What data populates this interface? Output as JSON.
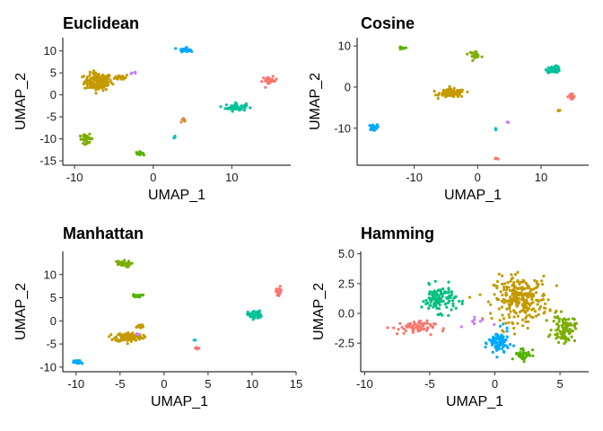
{
  "chart_data": [
    {
      "type": "scatter",
      "title": "Euclidean",
      "xlabel": "UMAP_1",
      "ylabel": "UMAP_2",
      "xlim": [
        -11.5,
        17.5
      ],
      "ylim": [
        -16,
        13
      ],
      "xticks": [
        -10,
        0,
        10
      ],
      "yticks": [
        -15,
        -10,
        -5,
        0,
        5,
        10
      ],
      "grid": false,
      "clusters": [
        {
          "color": "#C49A00",
          "cx": -7,
          "cy": 3,
          "sx": 1.6,
          "sy": 1.8,
          "n": 150
        },
        {
          "color": "#C49A00",
          "cx": -4,
          "cy": 4,
          "sx": 0.8,
          "sy": 0.6,
          "n": 18
        },
        {
          "color": "#00A9FF",
          "cx": 4,
          "cy": 10.3,
          "sx": 0.6,
          "sy": 0.4,
          "n": 30
        },
        {
          "color": "#00C19A",
          "cx": 10.5,
          "cy": -2.8,
          "sx": 1.2,
          "sy": 0.8,
          "n": 55
        },
        {
          "color": "#F8766D",
          "cx": 14.8,
          "cy": 3.2,
          "sx": 0.9,
          "sy": 0.8,
          "n": 22
        },
        {
          "color": "#7CAE00",
          "cx": -8.5,
          "cy": -10,
          "sx": 0.8,
          "sy": 0.9,
          "n": 30
        },
        {
          "color": "#53B400",
          "cx": -1.8,
          "cy": -13.3,
          "sx": 0.5,
          "sy": 0.3,
          "n": 14
        },
        {
          "color": "#F8766D",
          "cx": 3.8,
          "cy": -5.8,
          "sx": 0.3,
          "sy": 0.4,
          "n": 6
        },
        {
          "color": "#C49A00",
          "cx": 4,
          "cy": -6,
          "sx": 0.3,
          "sy": 0.3,
          "n": 4
        },
        {
          "color": "#00BFC4",
          "cx": 2.8,
          "cy": -9.5,
          "sx": 0.15,
          "sy": 0.3,
          "n": 3
        },
        {
          "color": "#C77CFF",
          "cx": -2.5,
          "cy": 5,
          "sx": 0.4,
          "sy": 0.3,
          "n": 4
        }
      ]
    },
    {
      "type": "scatter",
      "title": "Cosine",
      "xlabel": "UMAP_1",
      "ylabel": "UMAP_2",
      "xlim": [
        -19,
        17.5
      ],
      "ylim": [
        -19,
        12
      ],
      "xticks": [
        -10,
        0,
        10
      ],
      "yticks": [
        -10,
        0,
        10
      ],
      "grid": false,
      "clusters": [
        {
          "color": "#C49A00",
          "cx": -4,
          "cy": -1.5,
          "sx": 1.8,
          "sy": 0.9,
          "n": 130
        },
        {
          "color": "#00C19A",
          "cx": 12,
          "cy": 4.3,
          "sx": 1.0,
          "sy": 0.7,
          "n": 45
        },
        {
          "color": "#7CAE00",
          "cx": -0.5,
          "cy": 8,
          "sx": 0.9,
          "sy": 0.7,
          "n": 24
        },
        {
          "color": "#53B400",
          "cx": -12,
          "cy": 9.4,
          "sx": 0.4,
          "sy": 0.3,
          "n": 12
        },
        {
          "color": "#00A9FF",
          "cx": -16.5,
          "cy": -9.8,
          "sx": 0.6,
          "sy": 0.6,
          "n": 28
        },
        {
          "color": "#F8766D",
          "cx": 14.8,
          "cy": -2.4,
          "sx": 0.5,
          "sy": 0.8,
          "n": 20
        },
        {
          "color": "#F8766D",
          "cx": 3,
          "cy": -17.4,
          "sx": 0.2,
          "sy": 0.2,
          "n": 4
        },
        {
          "color": "#C49A00",
          "cx": 12.8,
          "cy": -5.8,
          "sx": 0.2,
          "sy": 0.3,
          "n": 3
        },
        {
          "color": "#C77CFF",
          "cx": 4.8,
          "cy": -8.6,
          "sx": 0.15,
          "sy": 0.15,
          "n": 2
        },
        {
          "color": "#00BFC4",
          "cx": 2.8,
          "cy": -10.2,
          "sx": 0.15,
          "sy": 0.2,
          "n": 2
        }
      ]
    },
    {
      "type": "scatter",
      "title": "Manhattan",
      "xlabel": "UMAP_1",
      "ylabel": "UMAP_2",
      "xlim": [
        -11.5,
        15
      ],
      "ylim": [
        -11,
        15
      ],
      "xticks": [
        -10,
        -5,
        0,
        5,
        10,
        15
      ],
      "yticks": [
        -10,
        -5,
        0,
        5,
        10
      ],
      "grid": false,
      "clusters": [
        {
          "color": "#C49A00",
          "cx": -4,
          "cy": -3.5,
          "sx": 1.4,
          "sy": 0.9,
          "n": 130
        },
        {
          "color": "#C49A00",
          "cx": -2.8,
          "cy": -1.2,
          "sx": 0.6,
          "sy": 0.5,
          "n": 14
        },
        {
          "color": "#7CAE00",
          "cx": -4.8,
          "cy": 12.3,
          "sx": 0.9,
          "sy": 0.6,
          "n": 35
        },
        {
          "color": "#53B400",
          "cx": -3,
          "cy": 5.4,
          "sx": 0.5,
          "sy": 0.3,
          "n": 16
        },
        {
          "color": "#00C19A",
          "cx": 10.3,
          "cy": 1.3,
          "sx": 0.7,
          "sy": 0.8,
          "n": 45
        },
        {
          "color": "#F8766D",
          "cx": 13,
          "cy": 6.3,
          "sx": 0.4,
          "sy": 1.0,
          "n": 20
        },
        {
          "color": "#00A9FF",
          "cx": -9.8,
          "cy": -9,
          "sx": 0.4,
          "sy": 0.4,
          "n": 24
        },
        {
          "color": "#F8766D",
          "cx": 3.8,
          "cy": -6,
          "sx": 0.3,
          "sy": 0.3,
          "n": 5
        },
        {
          "color": "#00BFC4",
          "cx": 3.5,
          "cy": -4.2,
          "sx": 0.2,
          "sy": 0.2,
          "n": 2
        },
        {
          "color": "#C77CFF",
          "cx": -3,
          "cy": -2.8,
          "sx": 0.2,
          "sy": 0.2,
          "n": 3
        }
      ]
    },
    {
      "type": "scatter",
      "title": "Hamming",
      "xlabel": "UMAP_1",
      "ylabel": "UMAP_2",
      "xlim": [
        -10.3,
        7.2
      ],
      "ylim": [
        -4.9,
        5.2
      ],
      "xticks": [
        -10,
        -5,
        0,
        5
      ],
      "yticks": [
        -2.5,
        0.0,
        2.5,
        5.0
      ],
      "ytick_labels": [
        "-2.5",
        "0.0",
        "2.5",
        "5.0"
      ],
      "grid": false,
      "clusters": [
        {
          "color": "#C49A00",
          "cx": 2,
          "cy": 1.2,
          "sx": 1.9,
          "sy": 1.7,
          "n": 260
        },
        {
          "color": "#00BF7D",
          "cx": -4.3,
          "cy": 1.2,
          "sx": 1.2,
          "sy": 1.0,
          "n": 110
        },
        {
          "color": "#00A9FF",
          "cx": 0.3,
          "cy": -2.5,
          "sx": 0.7,
          "sy": 1.0,
          "n": 80
        },
        {
          "color": "#7CAE00",
          "cx": 5.3,
          "cy": -1.3,
          "sx": 0.8,
          "sy": 1.0,
          "n": 90
        },
        {
          "color": "#53B400",
          "cx": 2.2,
          "cy": -3.4,
          "sx": 0.6,
          "sy": 0.5,
          "n": 40
        },
        {
          "color": "#F8766D",
          "cx": -6.3,
          "cy": -1.2,
          "sx": 1.5,
          "sy": 0.5,
          "n": 60
        },
        {
          "color": "#C77CFF",
          "cx": -1.5,
          "cy": -0.8,
          "sx": 1.0,
          "sy": 0.6,
          "n": 8
        }
      ]
    }
  ]
}
